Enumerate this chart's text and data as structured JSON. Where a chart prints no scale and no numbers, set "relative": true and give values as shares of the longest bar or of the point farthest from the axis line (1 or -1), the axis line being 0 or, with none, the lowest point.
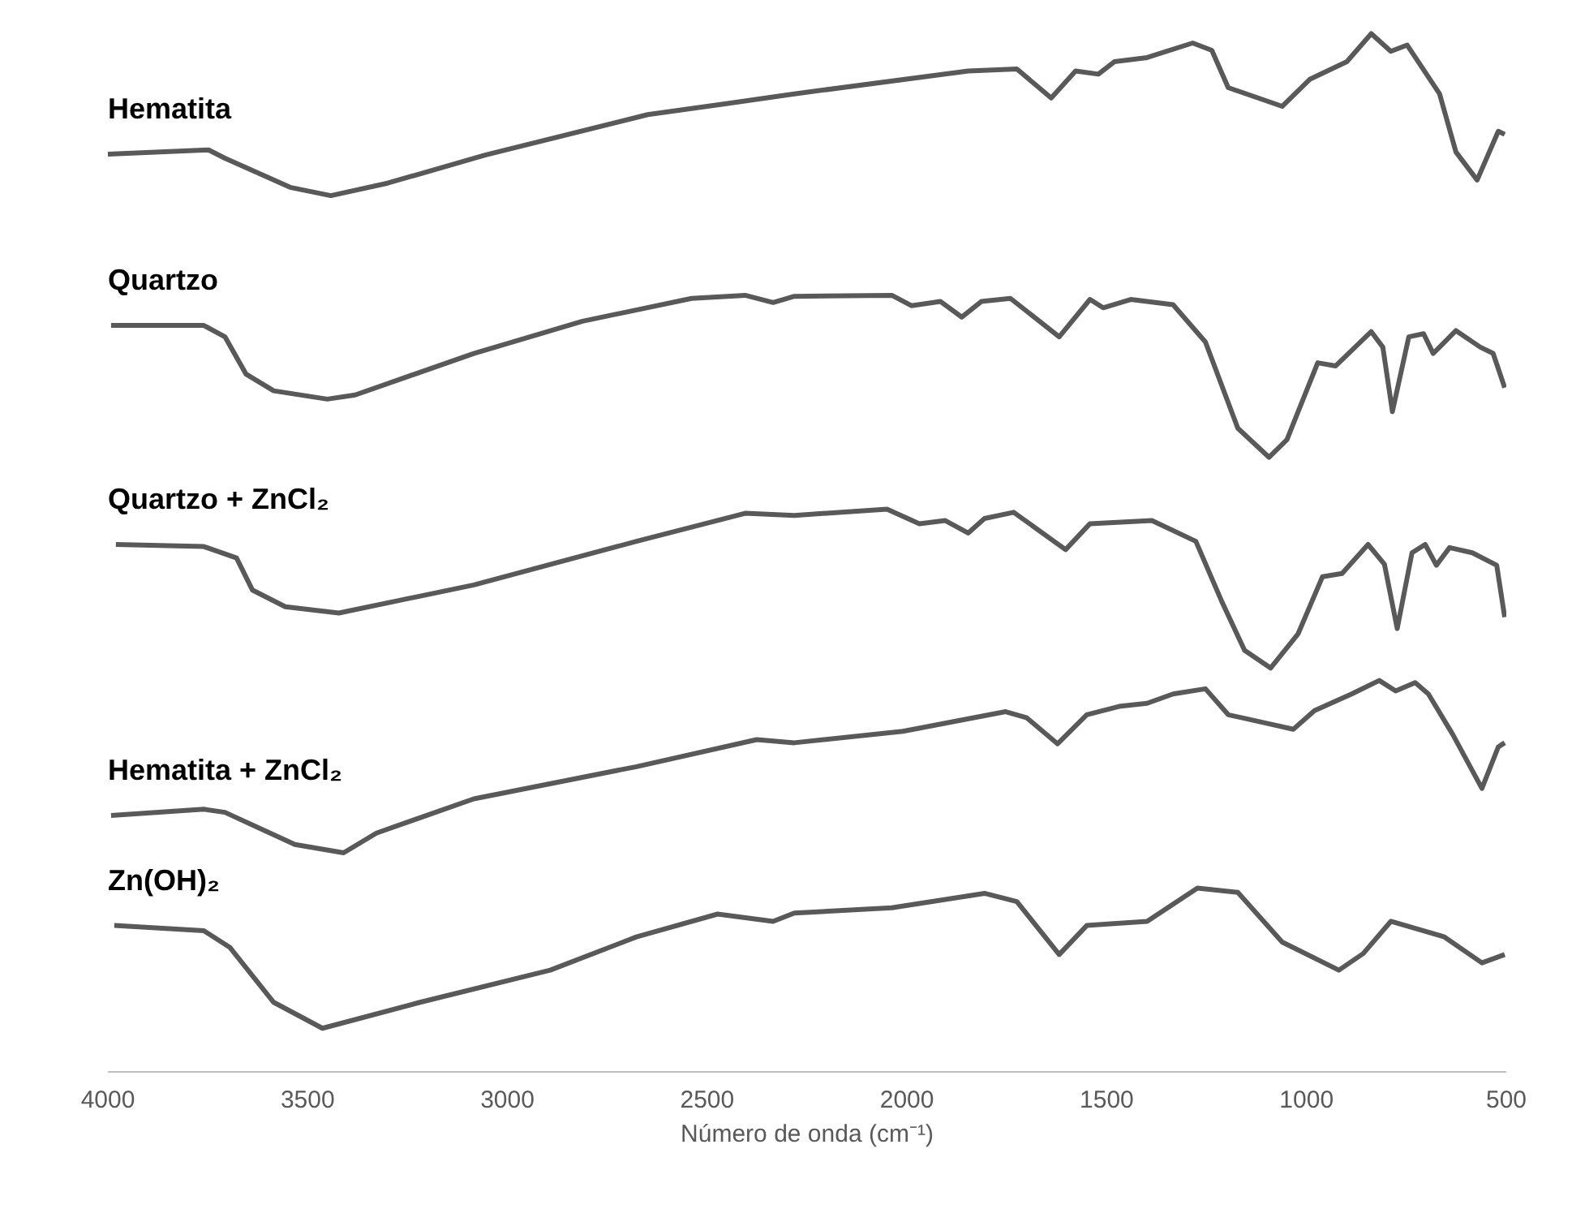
{
  "chart_data": {
    "type": "line",
    "relative": true,
    "xlabel": "Número de onda (cm⁻¹)",
    "xlim": [
      4000,
      500
    ],
    "xticks": [
      4000,
      3500,
      3000,
      2500,
      2000,
      1500,
      1000,
      500
    ],
    "grid": false,
    "series": [
      {
        "name": "Hematita",
        "color": "#595959",
        "x": [
          4000,
          3748,
          3707,
          3544,
          3442,
          3300,
          3056,
          2649,
          2445,
          2282,
          1847,
          1725,
          1639,
          1578,
          1521,
          1481,
          1399,
          1285,
          1237,
          1196,
          1061,
          992,
          899,
          838,
          789,
          748,
          667,
          626,
          573,
          520,
          504
        ],
        "values": [
          0.884,
          0.888,
          0.88,
          0.852,
          0.844,
          0.856,
          0.883,
          0.922,
          0.933,
          0.942,
          0.964,
          0.966,
          0.938,
          0.964,
          0.961,
          0.973,
          0.977,
          0.991,
          0.984,
          0.948,
          0.93,
          0.956,
          0.973,
          1.0,
          0.983,
          0.989,
          0.942,
          0.886,
          0.859,
          0.906,
          0.903
        ]
      },
      {
        "name": "Quartzo",
        "color": "#595959",
        "x": [
          3992,
          3760,
          3707,
          3654,
          3585,
          3451,
          3381,
          3084,
          2812,
          2539,
          2405,
          2335,
          2282,
          2038,
          1989,
          1916,
          1863,
          1814,
          1741,
          1619,
          1542,
          1509,
          1440,
          1334,
          1253,
          1172,
          1094,
          1049,
          972,
          927,
          838,
          809,
          785,
          744,
          707,
          683,
          626,
          565,
          533,
          504
        ],
        "values": [
          0.719,
          0.719,
          0.708,
          0.672,
          0.656,
          0.648,
          0.652,
          0.692,
          0.723,
          0.745,
          0.748,
          0.741,
          0.747,
          0.748,
          0.738,
          0.742,
          0.727,
          0.742,
          0.745,
          0.708,
          0.744,
          0.736,
          0.744,
          0.739,
          0.703,
          0.62,
          0.592,
          0.609,
          0.683,
          0.68,
          0.713,
          0.698,
          0.636,
          0.708,
          0.711,
          0.692,
          0.714,
          0.698,
          0.692,
          0.659
        ]
      },
      {
        "name": "Quartzo + ZnCl₂",
        "color": "#595959",
        "x": [
          3980,
          3760,
          3678,
          3638,
          3556,
          3422,
          3084,
          2677,
          2405,
          2282,
          2050,
          1969,
          1904,
          1847,
          1806,
          1733,
          1603,
          1542,
          1387,
          1277,
          1212,
          1155,
          1090,
          1021,
          960,
          911,
          846,
          805,
          773,
          736,
          703,
          675,
          642,
          585,
          524,
          504
        ],
        "values": [
          0.508,
          0.506,
          0.495,
          0.464,
          0.448,
          0.442,
          0.469,
          0.511,
          0.538,
          0.536,
          0.542,
          0.528,
          0.531,
          0.519,
          0.533,
          0.539,
          0.503,
          0.528,
          0.531,
          0.511,
          0.453,
          0.406,
          0.389,
          0.422,
          0.477,
          0.48,
          0.508,
          0.489,
          0.427,
          0.5,
          0.508,
          0.488,
          0.505,
          0.5,
          0.488,
          0.438
        ]
      },
      {
        "name": "Hematita + ZnCl₂",
        "color": "#595959",
        "x": [
          3992,
          3760,
          3707,
          3532,
          3410,
          3328,
          3084,
          2677,
          2376,
          2282,
          2010,
          1753,
          1700,
          1623,
          1550,
          1469,
          1399,
          1334,
          1253,
          1196,
          1102,
          1033,
          980,
          887,
          818,
          777,
          728,
          695,
          634,
          561,
          520,
          504
        ],
        "values": [
          0.247,
          0.253,
          0.25,
          0.219,
          0.211,
          0.23,
          0.263,
          0.294,
          0.32,
          0.317,
          0.328,
          0.347,
          0.341,
          0.316,
          0.344,
          0.352,
          0.355,
          0.364,
          0.369,
          0.344,
          0.336,
          0.33,
          0.348,
          0.364,
          0.377,
          0.367,
          0.375,
          0.364,
          0.325,
          0.273,
          0.313,
          0.317
        ]
      },
      {
        "name": "Zn(OH)₂",
        "color": "#595959",
        "x": [
          3984,
          3760,
          3695,
          3585,
          3463,
          3219,
          2893,
          2677,
          2474,
          2335,
          2282,
          2038,
          1806,
          1725,
          1619,
          1550,
          1399,
          1273,
          1172,
          1061,
          919,
          858,
          789,
          655,
          561,
          504
        ],
        "values": [
          0.141,
          0.136,
          0.12,
          0.067,
          0.042,
          0.067,
          0.098,
          0.13,
          0.152,
          0.145,
          0.153,
          0.158,
          0.172,
          0.164,
          0.113,
          0.141,
          0.145,
          0.177,
          0.173,
          0.125,
          0.098,
          0.114,
          0.145,
          0.13,
          0.105,
          0.113
        ]
      }
    ]
  }
}
